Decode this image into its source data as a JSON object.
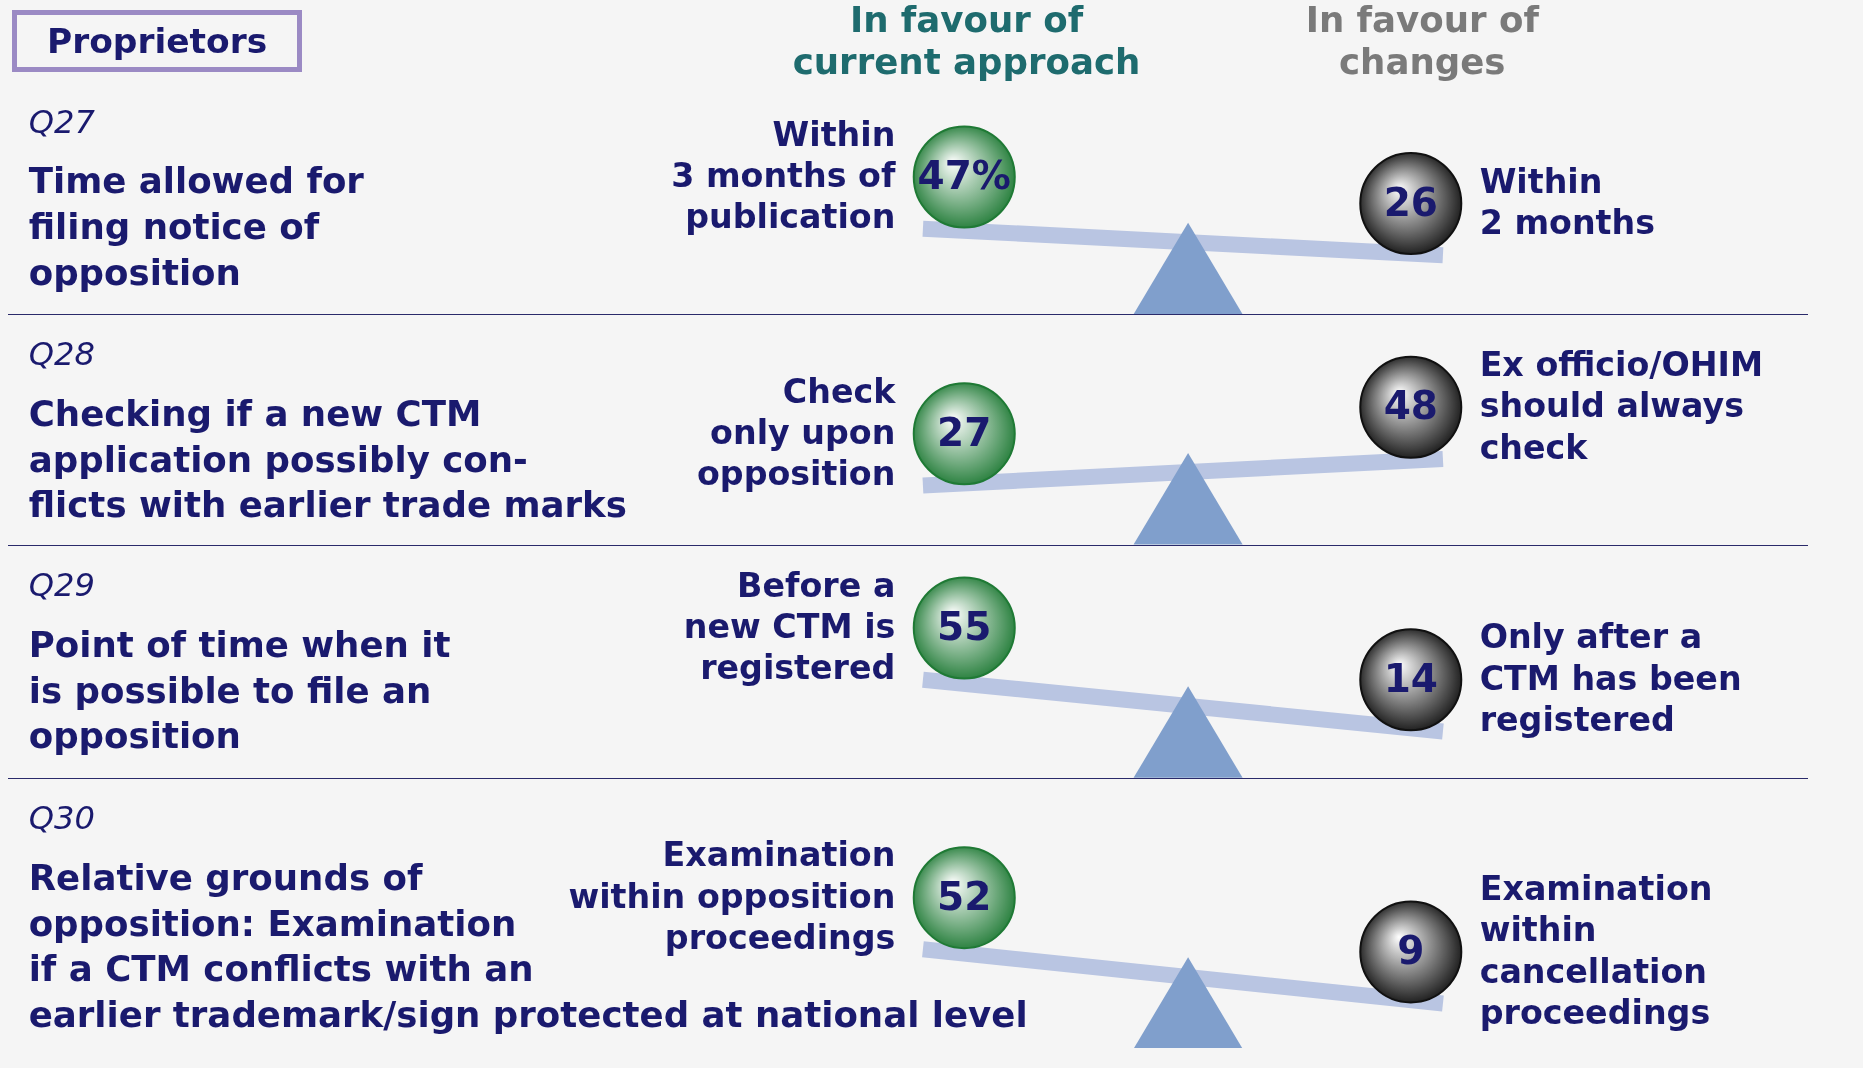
{
  "chart_data": [
    {
      "type": "other",
      "title": "Q27",
      "subtitle": "Time allowed for\nfiling notice of\nopposition",
      "annotations": [
        "Proprietors",
        "In favour of\ncurrent approach",
        "In favour of\nchanges"
      ],
      "categories": [
        "Within\n3 months of\npublication",
        "Within\n2 months"
      ],
      "values": [
        47,
        26
      ],
      "value_labels": [
        "47%",
        "26"
      ],
      "colors": [
        "#1f7a35",
        "#111111"
      ]
    },
    {
      "type": "other",
      "title": "Q28",
      "subtitle": "Checking if a new CTM\napplication possibly con-\nflicts with earlier trade marks",
      "categories": [
        "Check\nonly upon\nopposition",
        "Ex officio/OHIM\nshould always\ncheck"
      ],
      "values": [
        27,
        48
      ],
      "value_labels": [
        "27",
        "48"
      ],
      "colors": [
        "#1f7a35",
        "#111111"
      ]
    },
    {
      "type": "other",
      "title": "Q29",
      "subtitle": "Point of time when it\nis possible to file an\nopposition",
      "categories": [
        "Before a\nnew CTM is\nregistered",
        "Only after a\nCTM has been\nregistered"
      ],
      "values": [
        55,
        14
      ],
      "value_labels": [
        "55",
        "14"
      ],
      "colors": [
        "#1f7a35",
        "#111111"
      ]
    },
    {
      "type": "other",
      "title": "Q30",
      "subtitle": "Relative grounds of\nopposition: Examination\nif a CTM conflicts with an\nearlier trademark/sign protected at national level",
      "categories": [
        "Examination\nwithin opposition\nproceedings",
        "Examination\nwithin\ncancellation\nproceedings"
      ],
      "values": [
        52,
        9
      ],
      "value_labels": [
        "52",
        "9"
      ],
      "colors": [
        "#1f7a35",
        "#111111"
      ]
    }
  ]
}
